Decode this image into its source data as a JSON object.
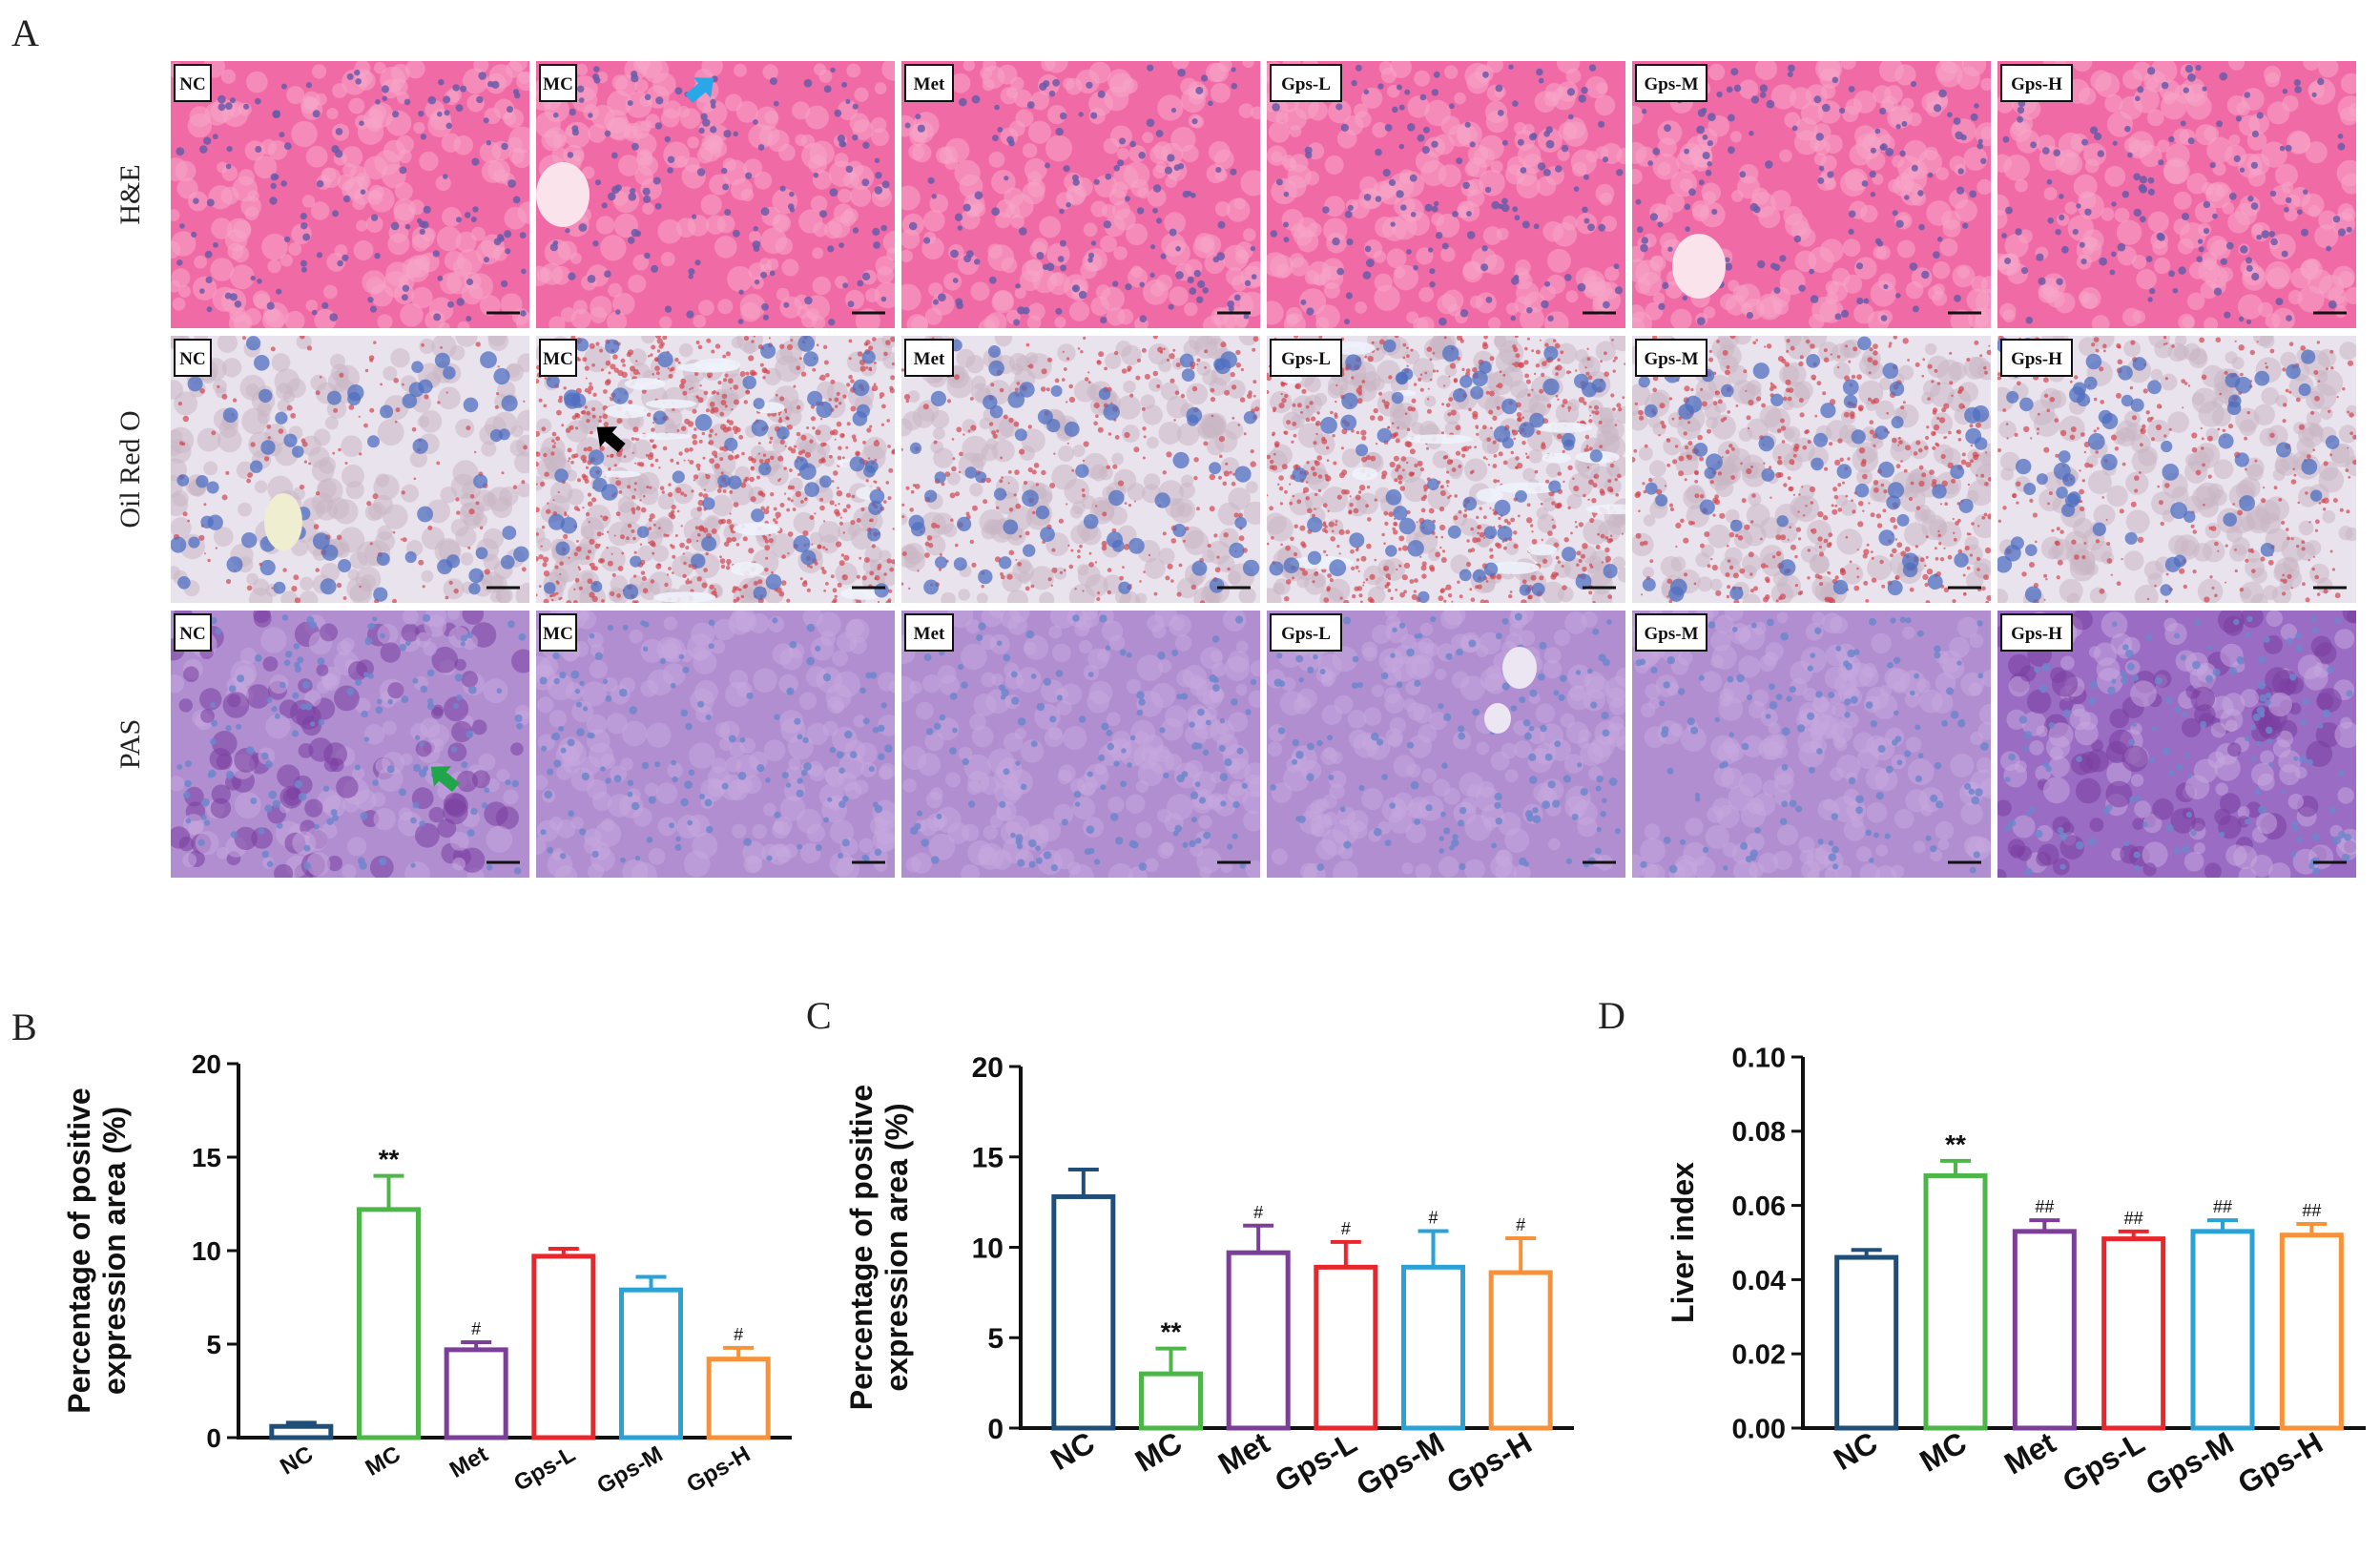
{
  "panel_a": {
    "label": "A",
    "row_labels": [
      "H&E",
      "Oil Red O",
      "PAS"
    ],
    "groups": [
      "NC",
      "MC",
      "Met",
      "Gps-L",
      "Gps-M",
      "Gps-H"
    ],
    "arrows": [
      {
        "row": 0,
        "col": 1,
        "color": "#2aa7e6"
      },
      {
        "row": 1,
        "col": 1,
        "color": "#000000"
      },
      {
        "row": 2,
        "col": 0,
        "color": "#1fa54a"
      }
    ],
    "stain_colors": {
      "he": {
        "bg": "#f06aa6",
        "cell": "#f7a6c8",
        "nucleus": "#6a5aa8"
      },
      "oil": {
        "bg": "#e9e3ee",
        "cell": "#cbb6c4",
        "nucleus": "#4f6fc0",
        "lipid": "#d2464f"
      },
      "pas": {
        "bg": "#b08ed0",
        "cell": "#c6a8de",
        "nucleus": "#6f86cc",
        "dark": "#7a3ea0"
      }
    }
  },
  "chart_data": [
    {
      "panel": "B",
      "type": "bar",
      "categories": [
        "NC",
        "MC",
        "Met",
        "Gps-L",
        "Gps-M",
        "Gps-H"
      ],
      "values": [
        0.6,
        12.2,
        4.7,
        9.7,
        7.9,
        4.2
      ],
      "errors": [
        0.2,
        1.8,
        0.4,
        0.4,
        0.7,
        0.6
      ],
      "annotations": [
        "",
        "**",
        "#",
        "",
        "",
        "#"
      ],
      "ylabel": "Percentage of positive expression area (%)",
      "ylabel_lines": [
        "Percentage of positive",
        "expression area (%)"
      ],
      "ylim": [
        0,
        20
      ],
      "yticks": [
        0,
        5,
        10,
        15,
        20
      ],
      "ytick_labels": [
        "0",
        "5",
        "10",
        "15",
        "20"
      ]
    },
    {
      "panel": "C",
      "type": "bar",
      "categories": [
        "NC",
        "MC",
        "Met",
        "Gps-L",
        "Gps-M",
        "Gps-H"
      ],
      "values": [
        12.8,
        3.0,
        9.7,
        8.9,
        8.9,
        8.6
      ],
      "errors": [
        1.5,
        1.4,
        1.5,
        1.4,
        2.0,
        1.9
      ],
      "annotations": [
        "",
        "**",
        "#",
        "#",
        "#",
        "#"
      ],
      "ylabel": "Percentage of positive expression area (%)",
      "ylabel_lines": [
        "Percentage of positive",
        "expression area (%)"
      ],
      "ylim": [
        0,
        20
      ],
      "yticks": [
        0,
        5,
        10,
        15,
        20
      ],
      "ytick_labels": [
        "0",
        "5",
        "10",
        "15",
        "20"
      ]
    },
    {
      "panel": "D",
      "type": "bar",
      "categories": [
        "NC",
        "MC",
        "Met",
        "Gps-L",
        "Gps-M",
        "Gps-H"
      ],
      "values": [
        0.046,
        0.068,
        0.053,
        0.051,
        0.053,
        0.052
      ],
      "errors": [
        0.002,
        0.004,
        0.003,
        0.002,
        0.003,
        0.003
      ],
      "annotations": [
        "",
        "**",
        "##",
        "##",
        "##",
        "##"
      ],
      "ylabel": "Liver index",
      "ylabel_lines": [
        "Liver index"
      ],
      "ylim": [
        0,
        0.1
      ],
      "yticks": [
        0,
        0.02,
        0.04,
        0.06,
        0.08,
        0.1
      ],
      "ytick_labels": [
        "0.00",
        "0.02",
        "0.04",
        "0.06",
        "0.08",
        "0.10"
      ]
    }
  ],
  "bar_colors": [
    "#1f4e79",
    "#4cb748",
    "#7b3f97",
    "#e8262b",
    "#2aa2d6",
    "#f7923a"
  ]
}
